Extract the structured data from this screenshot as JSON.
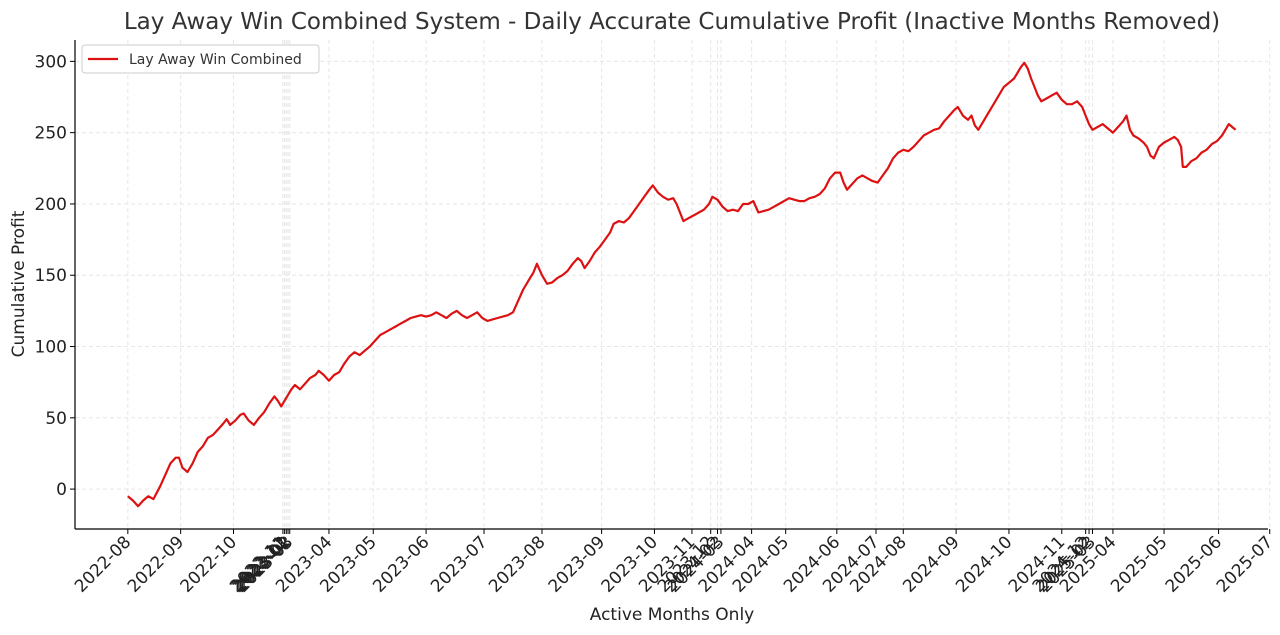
{
  "chart_data": {
    "type": "line",
    "title": "Lay Away Win Combined System - Daily Accurate Cumulative Profit (Inactive Months Removed)",
    "xlabel": "Active Months Only",
    "ylabel": "Cumulative Profit",
    "ylim": [
      -28,
      315
    ],
    "yticks": [
      0,
      50,
      100,
      150,
      200,
      250,
      300
    ],
    "grid": true,
    "legend_position": "top-left",
    "x_ticks": [
      {
        "label": "2022-08",
        "pos": 0
      },
      {
        "label": "2022-09",
        "pos": 31
      },
      {
        "label": "2022-10",
        "pos": 62
      },
      {
        "label": "2022-11",
        "pos": 91
      },
      {
        "label": "2022-12",
        "pos": 92
      },
      {
        "label": "2023-01",
        "pos": 93
      },
      {
        "label": "2023-02",
        "pos": 94
      },
      {
        "label": "2023-03",
        "pos": 95
      },
      {
        "label": "2023-04",
        "pos": 118
      },
      {
        "label": "2023-05",
        "pos": 144
      },
      {
        "label": "2023-06",
        "pos": 175
      },
      {
        "label": "2023-07",
        "pos": 209
      },
      {
        "label": "2023-08",
        "pos": 243
      },
      {
        "label": "2023-09",
        "pos": 278
      },
      {
        "label": "2023-10",
        "pos": 309
      },
      {
        "label": "2023-11",
        "pos": 331
      },
      {
        "label": "2023-12",
        "pos": 342
      },
      {
        "label": "2024-02",
        "pos": 346
      },
      {
        "label": "2024-03",
        "pos": 348
      },
      {
        "label": "2024-04",
        "pos": 366
      },
      {
        "label": "2024-05",
        "pos": 386
      },
      {
        "label": "2024-06",
        "pos": 416
      },
      {
        "label": "2024-07",
        "pos": 439
      },
      {
        "label": "2024-08",
        "pos": 455
      },
      {
        "label": "2024-09",
        "pos": 486
      },
      {
        "label": "2024-10",
        "pos": 517
      },
      {
        "label": "2024-11",
        "pos": 548
      },
      {
        "label": "2024-12",
        "pos": 562
      },
      {
        "label": "2025-02",
        "pos": 564
      },
      {
        "label": "2025-03",
        "pos": 566
      },
      {
        "label": "2025-04",
        "pos": 578
      },
      {
        "label": "2025-05",
        "pos": 608
      },
      {
        "label": "2025-06",
        "pos": 640
      },
      {
        "label": "2025-07",
        "pos": 670
      }
    ],
    "x_domain": [
      -31,
      669
    ],
    "series": [
      {
        "name": "Lay Away Win Combined",
        "color": "#dd1111",
        "points": [
          [
            0,
            -5
          ],
          [
            3,
            -8
          ],
          [
            6,
            -12
          ],
          [
            9,
            -8
          ],
          [
            12,
            -5
          ],
          [
            15,
            -7
          ],
          [
            19,
            2
          ],
          [
            22,
            10
          ],
          [
            25,
            18
          ],
          [
            28,
            22
          ],
          [
            30,
            22
          ],
          [
            32,
            15
          ],
          [
            35,
            12
          ],
          [
            38,
            18
          ],
          [
            41,
            26
          ],
          [
            44,
            30
          ],
          [
            47,
            36
          ],
          [
            50,
            38
          ],
          [
            53,
            42
          ],
          [
            56,
            46
          ],
          [
            58,
            49
          ],
          [
            60,
            45
          ],
          [
            63,
            48
          ],
          [
            66,
            52
          ],
          [
            68,
            53
          ],
          [
            71,
            48
          ],
          [
            74,
            45
          ],
          [
            77,
            50
          ],
          [
            80,
            54
          ],
          [
            83,
            60
          ],
          [
            86,
            65
          ],
          [
            88,
            62
          ],
          [
            90,
            58
          ],
          [
            93,
            64
          ],
          [
            96,
            70
          ],
          [
            98,
            73
          ],
          [
            101,
            70
          ],
          [
            104,
            74
          ],
          [
            107,
            78
          ],
          [
            110,
            80
          ],
          [
            112,
            83
          ],
          [
            115,
            80
          ],
          [
            118,
            76
          ],
          [
            121,
            80
          ],
          [
            124,
            82
          ],
          [
            127,
            88
          ],
          [
            130,
            93
          ],
          [
            133,
            96
          ],
          [
            136,
            94
          ],
          [
            139,
            97
          ],
          [
            142,
            100
          ],
          [
            145,
            104
          ],
          [
            148,
            108
          ],
          [
            151,
            110
          ],
          [
            154,
            112
          ],
          [
            157,
            114
          ],
          [
            160,
            116
          ],
          [
            163,
            118
          ],
          [
            166,
            120
          ],
          [
            169,
            121
          ],
          [
            172,
            122
          ],
          [
            175,
            121
          ],
          [
            178,
            122
          ],
          [
            181,
            124
          ],
          [
            184,
            122
          ],
          [
            187,
            120
          ],
          [
            190,
            123
          ],
          [
            193,
            125
          ],
          [
            196,
            122
          ],
          [
            199,
            120
          ],
          [
            202,
            122
          ],
          [
            205,
            124
          ],
          [
            208,
            120
          ],
          [
            211,
            118
          ],
          [
            214,
            119
          ],
          [
            217,
            120
          ],
          [
            220,
            121
          ],
          [
            223,
            122
          ],
          [
            226,
            124
          ],
          [
            229,
            132
          ],
          [
            232,
            140
          ],
          [
            235,
            146
          ],
          [
            238,
            152
          ],
          [
            240,
            158
          ],
          [
            243,
            150
          ],
          [
            246,
            144
          ],
          [
            249,
            145
          ],
          [
            252,
            148
          ],
          [
            255,
            150
          ],
          [
            258,
            153
          ],
          [
            261,
            158
          ],
          [
            264,
            162
          ],
          [
            266,
            160
          ],
          [
            268,
            155
          ],
          [
            271,
            160
          ],
          [
            274,
            166
          ],
          [
            277,
            170
          ],
          [
            280,
            175
          ],
          [
            283,
            180
          ],
          [
            285,
            186
          ],
          [
            288,
            188
          ],
          [
            291,
            187
          ],
          [
            294,
            190
          ],
          [
            297,
            195
          ],
          [
            300,
            200
          ],
          [
            303,
            205
          ],
          [
            306,
            210
          ],
          [
            308,
            213
          ],
          [
            311,
            208
          ],
          [
            314,
            205
          ],
          [
            317,
            203
          ],
          [
            320,
            204
          ],
          [
            322,
            200
          ],
          [
            324,
            194
          ],
          [
            326,
            188
          ],
          [
            329,
            190
          ],
          [
            332,
            192
          ],
          [
            335,
            194
          ],
          [
            338,
            196
          ],
          [
            341,
            200
          ],
          [
            343,
            205
          ],
          [
            346,
            203
          ],
          [
            349,
            198
          ],
          [
            352,
            195
          ],
          [
            355,
            196
          ],
          [
            358,
            195
          ],
          [
            361,
            200
          ],
          [
            364,
            200
          ],
          [
            367,
            202
          ],
          [
            370,
            194
          ],
          [
            373,
            195
          ],
          [
            376,
            196
          ],
          [
            379,
            198
          ],
          [
            382,
            200
          ],
          [
            385,
            202
          ],
          [
            388,
            204
          ],
          [
            391,
            203
          ],
          [
            394,
            202
          ],
          [
            397,
            202
          ],
          [
            400,
            204
          ],
          [
            403,
            205
          ],
          [
            406,
            207
          ],
          [
            409,
            211
          ],
          [
            412,
            218
          ],
          [
            415,
            222
          ],
          [
            418,
            222
          ],
          [
            420,
            215
          ],
          [
            422,
            210
          ],
          [
            425,
            214
          ],
          [
            428,
            218
          ],
          [
            431,
            220
          ],
          [
            434,
            218
          ],
          [
            437,
            216
          ],
          [
            440,
            215
          ],
          [
            443,
            220
          ],
          [
            446,
            225
          ],
          [
            449,
            232
          ],
          [
            452,
            236
          ],
          [
            455,
            238
          ],
          [
            458,
            237
          ],
          [
            461,
            240
          ],
          [
            464,
            244
          ],
          [
            467,
            248
          ],
          [
            470,
            250
          ],
          [
            473,
            252
          ],
          [
            476,
            253
          ],
          [
            479,
            258
          ],
          [
            482,
            262
          ],
          [
            485,
            266
          ],
          [
            487,
            268
          ],
          [
            490,
            262
          ],
          [
            493,
            259
          ],
          [
            495,
            262
          ],
          [
            497,
            255
          ],
          [
            499,
            252
          ],
          [
            502,
            258
          ],
          [
            505,
            264
          ],
          [
            508,
            270
          ],
          [
            511,
            276
          ],
          [
            514,
            282
          ],
          [
            517,
            285
          ],
          [
            520,
            288
          ],
          [
            522,
            292
          ],
          [
            524,
            296
          ],
          [
            526,
            299
          ],
          [
            528,
            295
          ],
          [
            530,
            288
          ],
          [
            532,
            282
          ],
          [
            534,
            276
          ],
          [
            536,
            272
          ],
          [
            539,
            274
          ],
          [
            542,
            276
          ],
          [
            545,
            278
          ],
          [
            548,
            273
          ],
          [
            551,
            270
          ],
          [
            554,
            270
          ],
          [
            557,
            272
          ],
          [
            560,
            268
          ],
          [
            562,
            262
          ],
          [
            564,
            256
          ],
          [
            566,
            252
          ],
          [
            569,
            254
          ],
          [
            572,
            256
          ],
          [
            575,
            253
          ],
          [
            578,
            250
          ],
          [
            581,
            254
          ],
          [
            584,
            258
          ],
          [
            586,
            262
          ],
          [
            588,
            252
          ],
          [
            590,
            248
          ],
          [
            593,
            246
          ],
          [
            596,
            243
          ],
          [
            598,
            240
          ],
          [
            600,
            234
          ],
          [
            602,
            232
          ],
          [
            605,
            240
          ],
          [
            608,
            243
          ],
          [
            611,
            245
          ],
          [
            614,
            247
          ],
          [
            616,
            245
          ],
          [
            618,
            240
          ],
          [
            619,
            226
          ],
          [
            621,
            226
          ],
          [
            624,
            230
          ],
          [
            627,
            232
          ],
          [
            630,
            236
          ],
          [
            633,
            238
          ],
          [
            636,
            242
          ],
          [
            639,
            244
          ],
          [
            642,
            248
          ],
          [
            644,
            252
          ],
          [
            646,
            256
          ],
          [
            648,
            254
          ],
          [
            650,
            252
          ]
        ]
      }
    ]
  }
}
